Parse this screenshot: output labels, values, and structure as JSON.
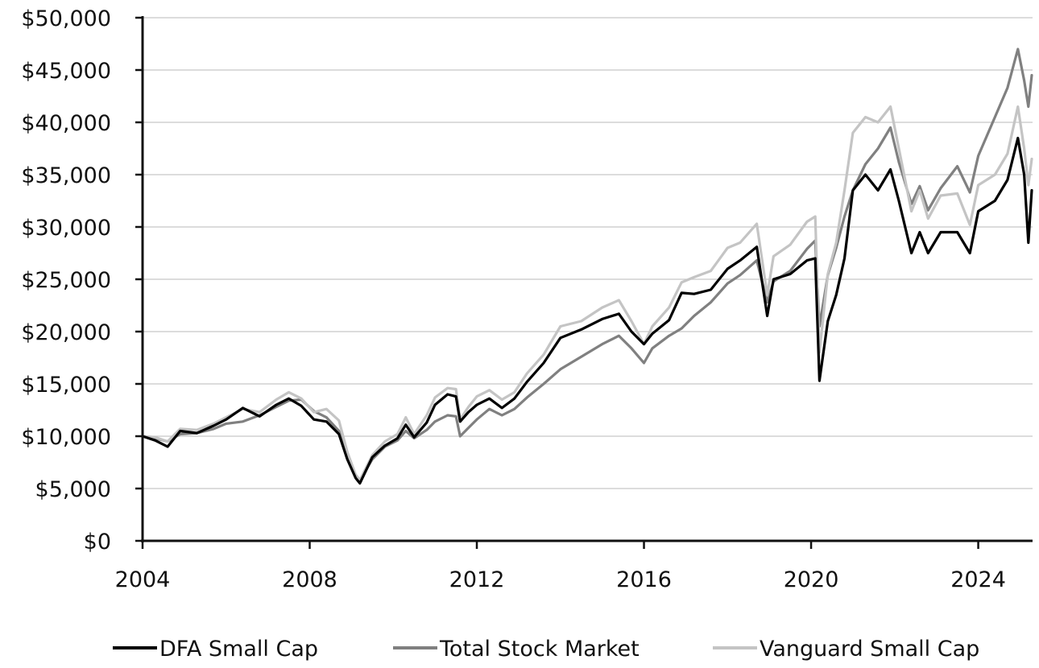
{
  "chart_data": {
    "type": "line",
    "title": "",
    "xlabel": "",
    "ylabel": "",
    "xlim": [
      2004,
      2025.3
    ],
    "ylim": [
      0,
      50000
    ],
    "y_ticks": [
      {
        "value": 0,
        "label": "$0"
      },
      {
        "value": 5000,
        "label": "$5,000"
      },
      {
        "value": 10000,
        "label": "$10,000"
      },
      {
        "value": 15000,
        "label": "$15,000"
      },
      {
        "value": 20000,
        "label": "$20,000"
      },
      {
        "value": 25000,
        "label": "$25,000"
      },
      {
        "value": 30000,
        "label": "$30,000"
      },
      {
        "value": 35000,
        "label": "$35,000"
      },
      {
        "value": 40000,
        "label": "$40,000"
      },
      {
        "value": 45000,
        "label": "$45,000"
      },
      {
        "value": 50000,
        "label": "$50,000"
      }
    ],
    "x_ticks": [
      {
        "value": 2004,
        "label": "2004"
      },
      {
        "value": 2008,
        "label": "2008"
      },
      {
        "value": 2012,
        "label": "2012"
      },
      {
        "value": 2016,
        "label": "2016"
      },
      {
        "value": 2020,
        "label": "2020"
      },
      {
        "value": 2024,
        "label": "2024"
      }
    ],
    "grid": "horizontal",
    "legend_position": "bottom",
    "series": [
      {
        "name": "Total Stock Market",
        "color": "#808080",
        "points": [
          [
            2004.0,
            10000
          ],
          [
            2004.3,
            9800
          ],
          [
            2004.6,
            9500
          ],
          [
            2004.9,
            10200
          ],
          [
            2005.3,
            10300
          ],
          [
            2005.7,
            10700
          ],
          [
            2006.0,
            11200
          ],
          [
            2006.4,
            11400
          ],
          [
            2006.8,
            12000
          ],
          [
            2007.2,
            12800
          ],
          [
            2007.5,
            13400
          ],
          [
            2007.8,
            13500
          ],
          [
            2008.1,
            12400
          ],
          [
            2008.4,
            11800
          ],
          [
            2008.7,
            10500
          ],
          [
            2008.9,
            7800
          ],
          [
            2009.1,
            6300
          ],
          [
            2009.2,
            5800
          ],
          [
            2009.5,
            7800
          ],
          [
            2009.8,
            9000
          ],
          [
            2010.1,
            9600
          ],
          [
            2010.3,
            10500
          ],
          [
            2010.5,
            9800
          ],
          [
            2010.8,
            10600
          ],
          [
            2011.0,
            11400
          ],
          [
            2011.3,
            12000
          ],
          [
            2011.5,
            11900
          ],
          [
            2011.6,
            10000
          ],
          [
            2011.8,
            10800
          ],
          [
            2012.0,
            11600
          ],
          [
            2012.3,
            12600
          ],
          [
            2012.6,
            12000
          ],
          [
            2012.9,
            12600
          ],
          [
            2013.2,
            13700
          ],
          [
            2013.6,
            15000
          ],
          [
            2014.0,
            16400
          ],
          [
            2014.5,
            17600
          ],
          [
            2015.0,
            18800
          ],
          [
            2015.4,
            19600
          ],
          [
            2015.7,
            18400
          ],
          [
            2016.0,
            17000
          ],
          [
            2016.2,
            18400
          ],
          [
            2016.6,
            19600
          ],
          [
            2016.9,
            20300
          ],
          [
            2017.2,
            21500
          ],
          [
            2017.6,
            22800
          ],
          [
            2018.0,
            24600
          ],
          [
            2018.3,
            25400
          ],
          [
            2018.7,
            26800
          ],
          [
            2018.95,
            22800
          ],
          [
            2019.1,
            24800
          ],
          [
            2019.5,
            25800
          ],
          [
            2019.9,
            27900
          ],
          [
            2020.1,
            28700
          ],
          [
            2020.2,
            20500
          ],
          [
            2020.4,
            25400
          ],
          [
            2020.6,
            28000
          ],
          [
            2020.8,
            31000
          ],
          [
            2021.0,
            33500
          ],
          [
            2021.3,
            36000
          ],
          [
            2021.6,
            37500
          ],
          [
            2021.9,
            39500
          ],
          [
            2022.1,
            36200
          ],
          [
            2022.4,
            32200
          ],
          [
            2022.6,
            33900
          ],
          [
            2022.8,
            31600
          ],
          [
            2023.1,
            33700
          ],
          [
            2023.5,
            35800
          ],
          [
            2023.8,
            33300
          ],
          [
            2024.0,
            36800
          ],
          [
            2024.4,
            40500
          ],
          [
            2024.7,
            43300
          ],
          [
            2024.95,
            47000
          ],
          [
            2025.1,
            44000
          ],
          [
            2025.2,
            41500
          ],
          [
            2025.28,
            44500
          ]
        ]
      },
      {
        "name": "Vanguard Small Cap",
        "color": "#c4c4c4",
        "points": [
          [
            2004.0,
            10000
          ],
          [
            2004.3,
            9900
          ],
          [
            2004.6,
            9500
          ],
          [
            2004.9,
            10700
          ],
          [
            2005.3,
            10600
          ],
          [
            2005.7,
            11200
          ],
          [
            2006.0,
            11800
          ],
          [
            2006.4,
            12600
          ],
          [
            2006.8,
            12300
          ],
          [
            2007.2,
            13500
          ],
          [
            2007.5,
            14200
          ],
          [
            2007.8,
            13600
          ],
          [
            2008.1,
            12300
          ],
          [
            2008.4,
            12600
          ],
          [
            2008.7,
            11500
          ],
          [
            2008.9,
            8500
          ],
          [
            2009.1,
            6300
          ],
          [
            2009.2,
            5800
          ],
          [
            2009.5,
            8200
          ],
          [
            2009.8,
            9500
          ],
          [
            2010.1,
            10200
          ],
          [
            2010.3,
            11800
          ],
          [
            2010.5,
            10200
          ],
          [
            2010.8,
            12000
          ],
          [
            2011.0,
            13700
          ],
          [
            2011.3,
            14600
          ],
          [
            2011.5,
            14500
          ],
          [
            2011.6,
            11600
          ],
          [
            2011.8,
            12800
          ],
          [
            2012.0,
            13800
          ],
          [
            2012.3,
            14400
          ],
          [
            2012.6,
            13500
          ],
          [
            2012.9,
            14200
          ],
          [
            2013.2,
            16000
          ],
          [
            2013.6,
            17800
          ],
          [
            2014.0,
            20500
          ],
          [
            2014.5,
            21000
          ],
          [
            2015.0,
            22300
          ],
          [
            2015.4,
            23000
          ],
          [
            2015.7,
            21000
          ],
          [
            2016.0,
            18800
          ],
          [
            2016.2,
            20500
          ],
          [
            2016.6,
            22300
          ],
          [
            2016.9,
            24700
          ],
          [
            2017.2,
            25200
          ],
          [
            2017.6,
            25800
          ],
          [
            2018.0,
            28000
          ],
          [
            2018.3,
            28500
          ],
          [
            2018.7,
            30300
          ],
          [
            2018.95,
            23500
          ],
          [
            2019.1,
            27200
          ],
          [
            2019.5,
            28300
          ],
          [
            2019.9,
            30500
          ],
          [
            2020.1,
            31000
          ],
          [
            2020.2,
            18000
          ],
          [
            2020.4,
            25500
          ],
          [
            2020.6,
            28500
          ],
          [
            2020.8,
            33500
          ],
          [
            2021.0,
            39000
          ],
          [
            2021.3,
            40500
          ],
          [
            2021.6,
            40000
          ],
          [
            2021.9,
            41500
          ],
          [
            2022.1,
            37500
          ],
          [
            2022.4,
            31500
          ],
          [
            2022.6,
            33500
          ],
          [
            2022.8,
            30800
          ],
          [
            2023.1,
            33000
          ],
          [
            2023.5,
            33200
          ],
          [
            2023.8,
            30200
          ],
          [
            2024.0,
            34000
          ],
          [
            2024.4,
            35000
          ],
          [
            2024.7,
            37000
          ],
          [
            2024.95,
            41500
          ],
          [
            2025.1,
            37500
          ],
          [
            2025.2,
            34000
          ],
          [
            2025.28,
            36500
          ]
        ]
      },
      {
        "name": "DFA Small Cap",
        "color": "#000000",
        "points": [
          [
            2004.0,
            10000
          ],
          [
            2004.3,
            9600
          ],
          [
            2004.6,
            9000
          ],
          [
            2004.9,
            10500
          ],
          [
            2005.3,
            10300
          ],
          [
            2005.7,
            11000
          ],
          [
            2006.0,
            11600
          ],
          [
            2006.4,
            12700
          ],
          [
            2006.8,
            11900
          ],
          [
            2007.2,
            13000
          ],
          [
            2007.5,
            13600
          ],
          [
            2007.8,
            12900
          ],
          [
            2008.1,
            11600
          ],
          [
            2008.4,
            11400
          ],
          [
            2008.7,
            10200
          ],
          [
            2008.9,
            7800
          ],
          [
            2009.1,
            6000
          ],
          [
            2009.2,
            5500
          ],
          [
            2009.5,
            8000
          ],
          [
            2009.8,
            9100
          ],
          [
            2010.1,
            9800
          ],
          [
            2010.3,
            11100
          ],
          [
            2010.5,
            9900
          ],
          [
            2010.8,
            11300
          ],
          [
            2011.0,
            13000
          ],
          [
            2011.3,
            14000
          ],
          [
            2011.5,
            13800
          ],
          [
            2011.6,
            11400
          ],
          [
            2011.8,
            12300
          ],
          [
            2012.0,
            13000
          ],
          [
            2012.3,
            13600
          ],
          [
            2012.6,
            12700
          ],
          [
            2012.9,
            13600
          ],
          [
            2013.2,
            15200
          ],
          [
            2013.6,
            17000
          ],
          [
            2014.0,
            19400
          ],
          [
            2014.5,
            20200
          ],
          [
            2015.0,
            21200
          ],
          [
            2015.4,
            21700
          ],
          [
            2015.7,
            20000
          ],
          [
            2016.0,
            18800
          ],
          [
            2016.2,
            19800
          ],
          [
            2016.6,
            21100
          ],
          [
            2016.9,
            23700
          ],
          [
            2017.2,
            23600
          ],
          [
            2017.6,
            24000
          ],
          [
            2018.0,
            26000
          ],
          [
            2018.3,
            26800
          ],
          [
            2018.7,
            28100
          ],
          [
            2018.95,
            21500
          ],
          [
            2019.1,
            25000
          ],
          [
            2019.5,
            25500
          ],
          [
            2019.9,
            26800
          ],
          [
            2020.1,
            27000
          ],
          [
            2020.2,
            15300
          ],
          [
            2020.4,
            21000
          ],
          [
            2020.6,
            23500
          ],
          [
            2020.8,
            27000
          ],
          [
            2021.0,
            33500
          ],
          [
            2021.3,
            35000
          ],
          [
            2021.6,
            33500
          ],
          [
            2021.9,
            35500
          ],
          [
            2022.1,
            32500
          ],
          [
            2022.4,
            27500
          ],
          [
            2022.6,
            29500
          ],
          [
            2022.8,
            27500
          ],
          [
            2023.1,
            29500
          ],
          [
            2023.5,
            29500
          ],
          [
            2023.8,
            27500
          ],
          [
            2024.0,
            31500
          ],
          [
            2024.4,
            32500
          ],
          [
            2024.7,
            34500
          ],
          [
            2024.95,
            38500
          ],
          [
            2025.1,
            35000
          ],
          [
            2025.2,
            28500
          ],
          [
            2025.28,
            33500
          ]
        ]
      }
    ],
    "legend": [
      {
        "name": "DFA Small Cap",
        "color": "#000000"
      },
      {
        "name": "Total Stock Market",
        "color": "#808080"
      },
      {
        "name": "Vanguard Small Cap",
        "color": "#c4c4c4"
      }
    ]
  }
}
